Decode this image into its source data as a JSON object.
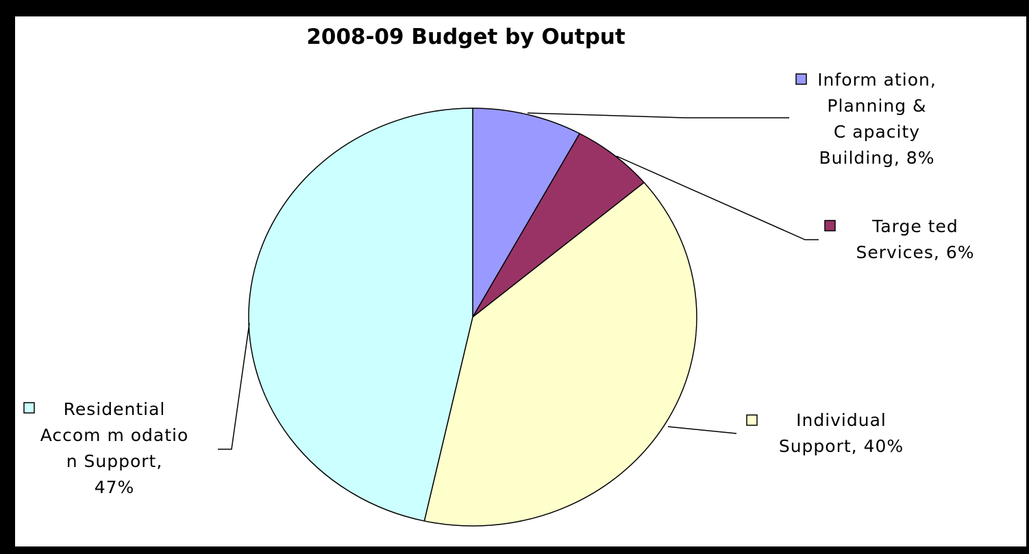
{
  "chart_data": {
    "type": "pie",
    "title": "2008-09 Budget by Output",
    "start_angle_deg": 0,
    "direction": "clockwise",
    "slices": [
      {
        "label": "Information, Planning & Capacity Building",
        "value": 8,
        "color": "#9999ff",
        "label_lines": [
          "Inform ation,",
          "Planning &",
          "C apacity",
          "Building, 8%"
        ]
      },
      {
        "label": "Targeted Services",
        "value": 6,
        "color": "#993366",
        "label_lines": [
          "Targe ted",
          "Services, 6%"
        ]
      },
      {
        "label": "Individual Support",
        "value": 40,
        "color": "#ffffcc",
        "label_lines": [
          "Individual",
          "Support, 40%"
        ]
      },
      {
        "label": "Residential Accommodation Support",
        "value": 47,
        "color": "#ccffff",
        "label_lines": [
          "Residential",
          "Accom m odatio",
          "n Support,",
          "47%"
        ]
      }
    ],
    "data_labels": "category name and percentage with legend key",
    "border": "black"
  }
}
